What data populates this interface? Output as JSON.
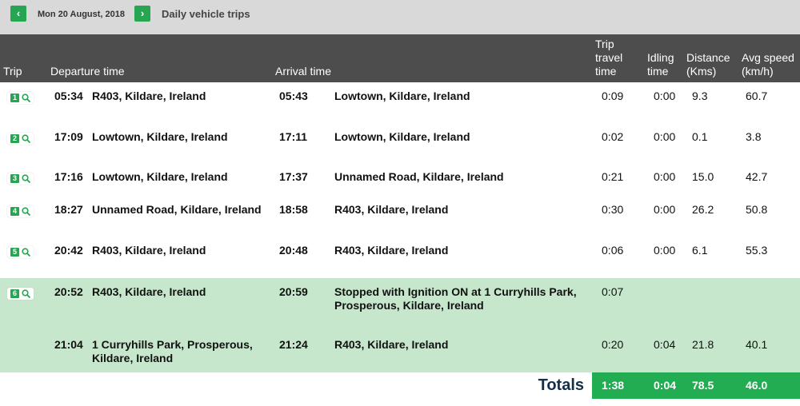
{
  "header": {
    "date": "Mon 20 August, 2018",
    "title": "Daily vehicle trips"
  },
  "table": {
    "columns": {
      "trip": "Trip",
      "departure": "Departure time",
      "arrival": "Arrival time",
      "travel": "Trip travel time",
      "idle": "Idling time",
      "distance": "Distance (Kms)",
      "speed": "Avg speed (km/h)"
    },
    "rows": [
      {
        "trip": "1",
        "dep_time": "05:34",
        "dep_place": "R403, Kildare, Ireland",
        "arr_time": "05:43",
        "arr_place": "Lowtown, Kildare, Ireland",
        "travel": "0:09",
        "idle": "0:00",
        "distance": "9.3",
        "speed": "60.7"
      },
      {
        "trip": "2",
        "dep_time": "17:09",
        "dep_place": "Lowtown, Kildare, Ireland",
        "arr_time": "17:11",
        "arr_place": "Lowtown, Kildare, Ireland",
        "travel": "0:02",
        "idle": "0:00",
        "distance": "0.1",
        "speed": "3.8"
      },
      {
        "trip": "3",
        "dep_time": "17:16",
        "dep_place": "Lowtown, Kildare, Ireland",
        "arr_time": "17:37",
        "arr_place": "Unnamed Road, Kildare, Ireland",
        "travel": "0:21",
        "idle": "0:00",
        "distance": "15.0",
        "speed": "42.7"
      },
      {
        "trip": "4",
        "dep_time": "18:27",
        "dep_place": "Unnamed Road, Kildare, Ireland",
        "arr_time": "18:58",
        "arr_place": "R403, Kildare, Ireland",
        "travel": "0:30",
        "idle": "0:00",
        "distance": "26.2",
        "speed": "50.8"
      },
      {
        "trip": "5",
        "dep_time": "20:42",
        "dep_place": "R403, Kildare, Ireland",
        "arr_time": "20:48",
        "arr_place": "R403, Kildare, Ireland",
        "travel": "0:06",
        "idle": "0:00",
        "distance": "6.1",
        "speed": "55.3"
      },
      {
        "trip": "6",
        "dep_time": "20:52",
        "dep_place": "R403, Kildare, Ireland",
        "arr_time": "20:59",
        "arr_place": "Stopped with Ignition ON at 1 Curryhills Park, Prosperous, Kildare, Ireland",
        "travel": "0:07"
      },
      {
        "dep_time": "21:04",
        "dep_place": "1 Curryhills Park, Prosperous, Kildare,  Ireland",
        "arr_time": "21:24",
        "arr_place": "R403, Kildare, Ireland",
        "travel": "0:20",
        "idle": "0:04",
        "distance": "21.8",
        "speed": "40.1"
      }
    ],
    "totals": {
      "label": "Totals",
      "travel": "1:38",
      "idle": "0:04",
      "distance": "78.5",
      "speed": "46.0"
    }
  }
}
